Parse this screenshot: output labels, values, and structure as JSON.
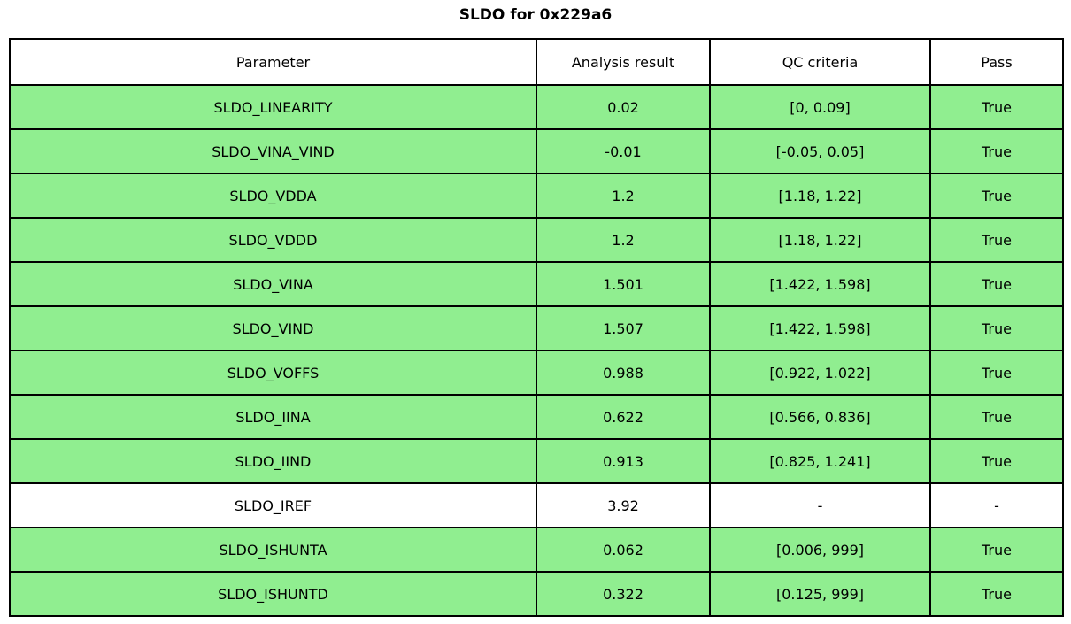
{
  "title": "SLDO for 0x229a6",
  "table": {
    "headers": [
      "Parameter",
      "Analysis result",
      "QC criteria",
      "Pass"
    ],
    "rows": [
      {
        "parameter": "SLDO_LINEARITY",
        "result": "0.02",
        "criteria": "[0, 0.09]",
        "pass": "True",
        "highlight": true
      },
      {
        "parameter": "SLDO_VINA_VIND",
        "result": "-0.01",
        "criteria": "[-0.05, 0.05]",
        "pass": "True",
        "highlight": true
      },
      {
        "parameter": "SLDO_VDDA",
        "result": "1.2",
        "criteria": "[1.18, 1.22]",
        "pass": "True",
        "highlight": true
      },
      {
        "parameter": "SLDO_VDDD",
        "result": "1.2",
        "criteria": "[1.18, 1.22]",
        "pass": "True",
        "highlight": true
      },
      {
        "parameter": "SLDO_VINA",
        "result": "1.501",
        "criteria": "[1.422, 1.598]",
        "pass": "True",
        "highlight": true
      },
      {
        "parameter": "SLDO_VIND",
        "result": "1.507",
        "criteria": "[1.422, 1.598]",
        "pass": "True",
        "highlight": true
      },
      {
        "parameter": "SLDO_VOFFS",
        "result": "0.988",
        "criteria": "[0.922, 1.022]",
        "pass": "True",
        "highlight": true
      },
      {
        "parameter": "SLDO_IINA",
        "result": "0.622",
        "criteria": "[0.566, 0.836]",
        "pass": "True",
        "highlight": true
      },
      {
        "parameter": "SLDO_IIND",
        "result": "0.913",
        "criteria": "[0.825, 1.241]",
        "pass": "True",
        "highlight": true
      },
      {
        "parameter": "SLDO_IREF",
        "result": "3.92",
        "criteria": "-",
        "pass": "-",
        "highlight": false
      },
      {
        "parameter": "SLDO_ISHUNTA",
        "result": "0.062",
        "criteria": "[0.006, 999]",
        "pass": "True",
        "highlight": true
      },
      {
        "parameter": "SLDO_ISHUNTD",
        "result": "0.322",
        "criteria": "[0.125, 999]",
        "pass": "True",
        "highlight": true
      }
    ]
  },
  "colors": {
    "pass_green": "#90ee90",
    "row_white": "#ffffff",
    "border": "#000000",
    "text": "#000000"
  }
}
